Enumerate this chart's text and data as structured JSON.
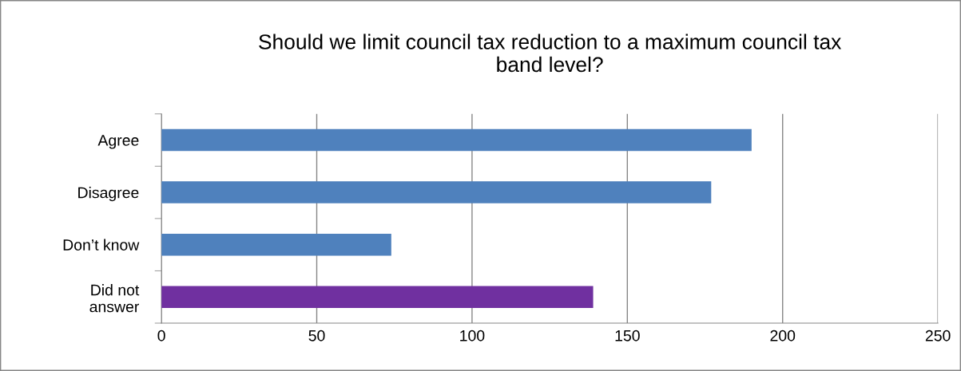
{
  "chart_data": {
    "type": "bar",
    "orientation": "horizontal",
    "title": "Should we limit council tax reduction to a maximum council tax\nband level?",
    "categories": [
      "Agree",
      "Disagree",
      "Don’t know",
      "Did not\nanswer"
    ],
    "values": [
      190,
      177,
      74,
      139
    ],
    "colors": [
      "#4f81bd",
      "#4f81bd",
      "#4f81bd",
      "#7030a0"
    ],
    "xlim": [
      0,
      250
    ],
    "xticks": [
      0,
      50,
      100,
      150,
      200,
      250
    ],
    "grid": "x"
  }
}
